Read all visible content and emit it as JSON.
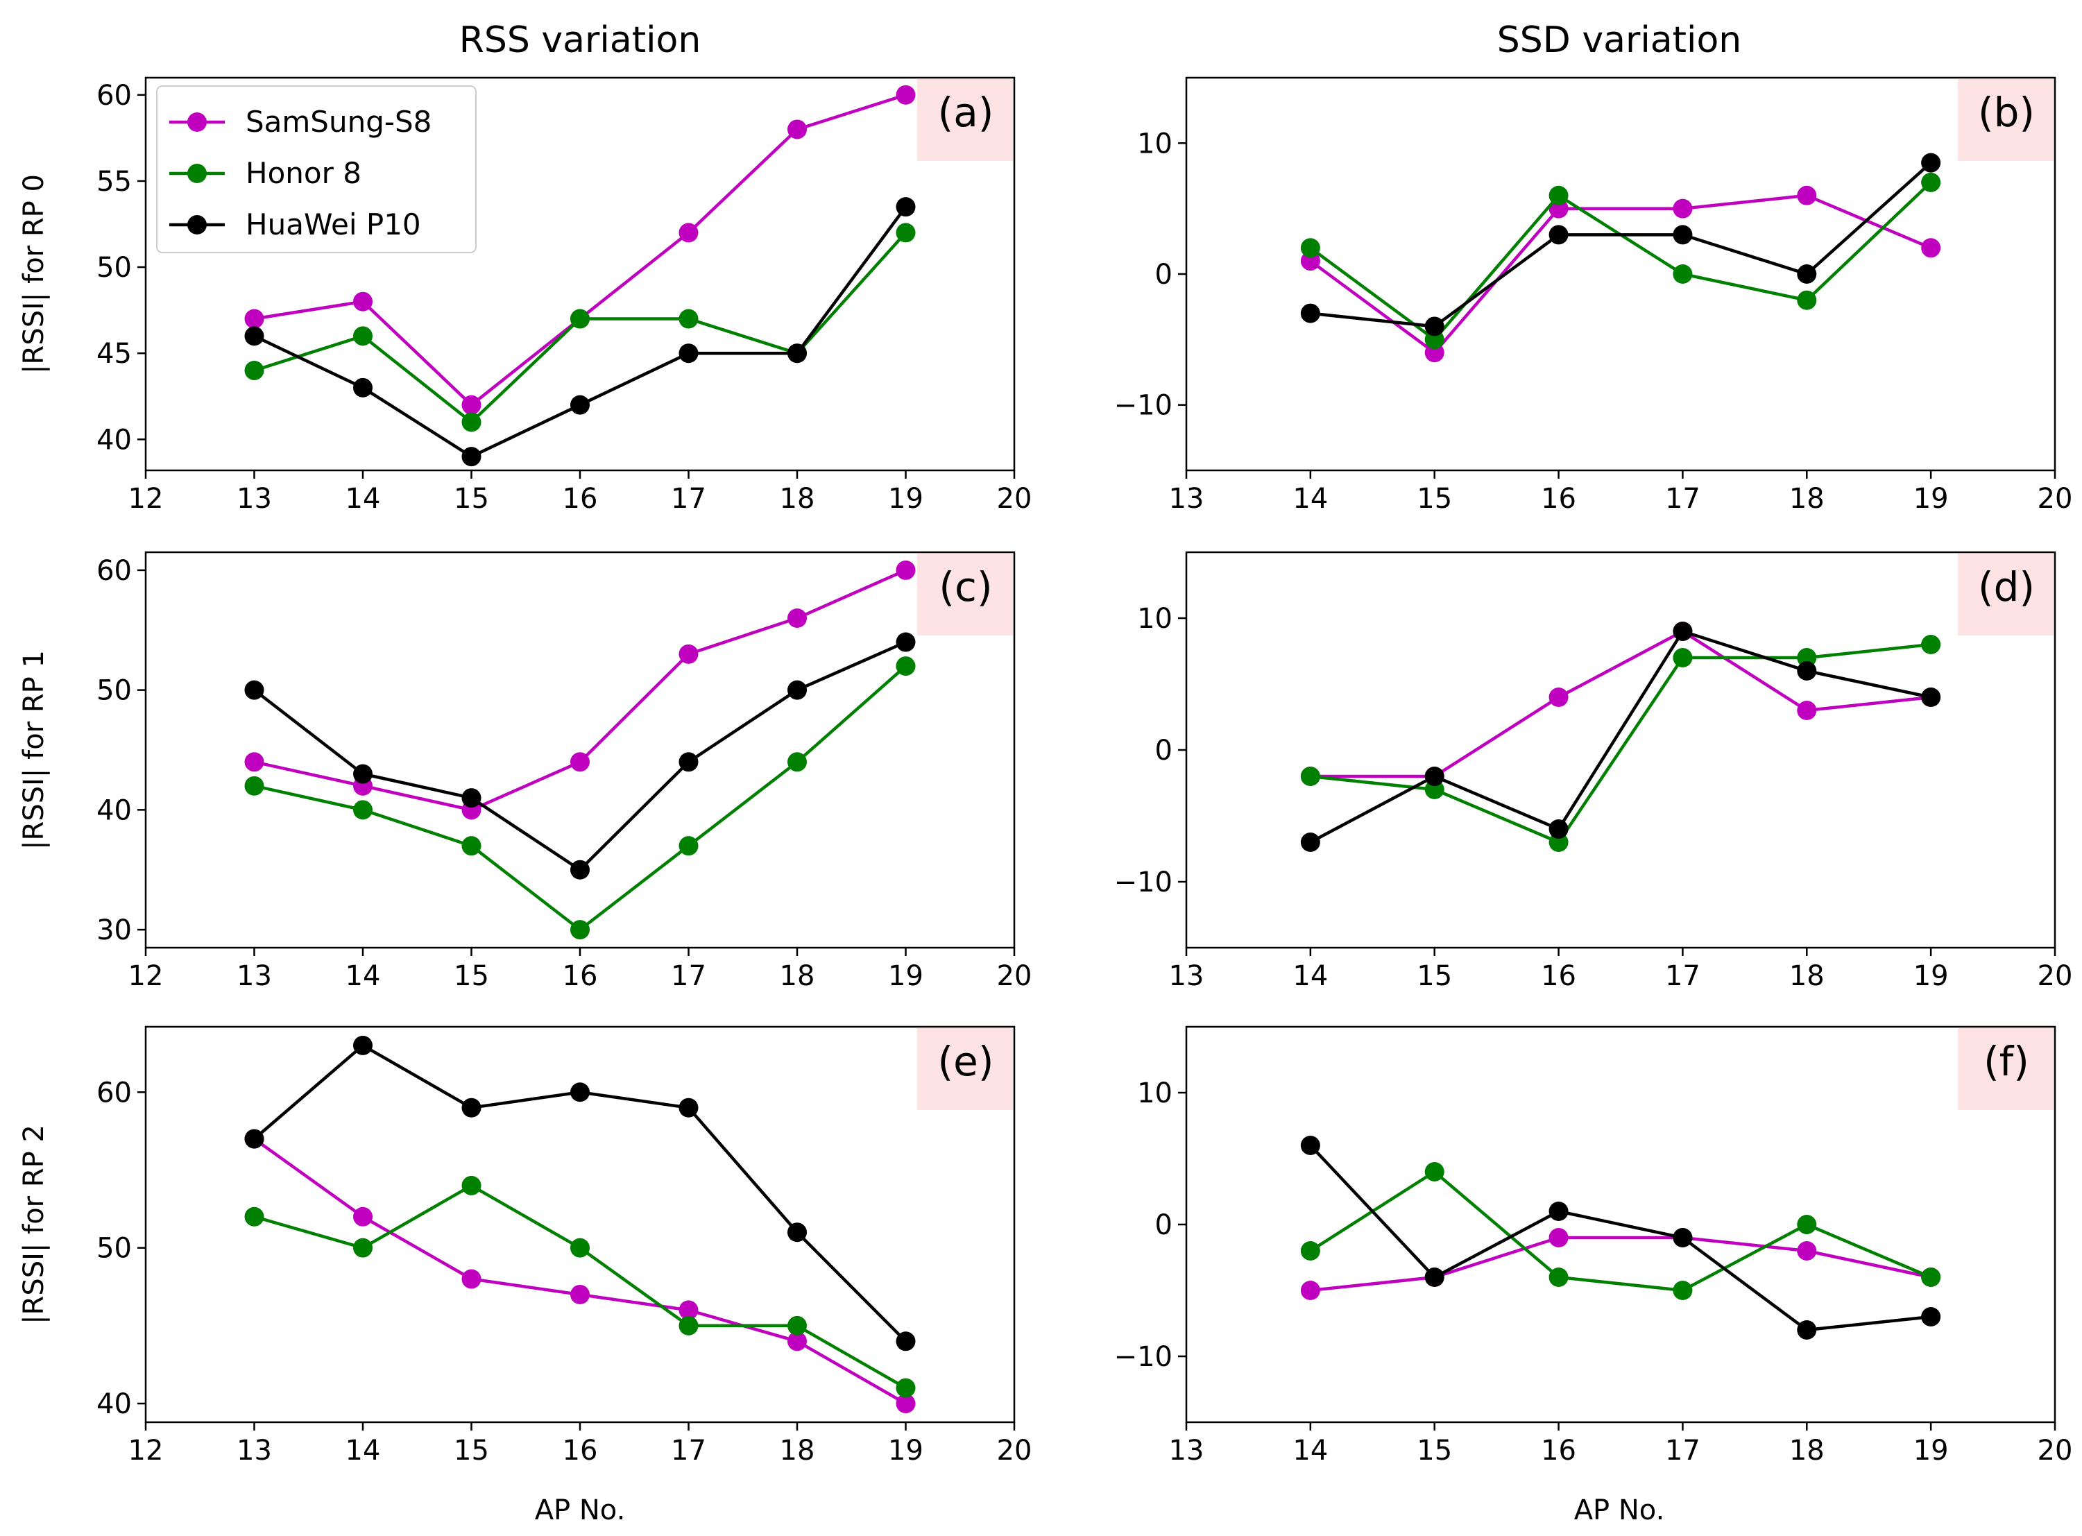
{
  "colors": {
    "SamSung-S8": "#bf00bf",
    "Honor 8": "#008000",
    "HuaWei P10": "#000000",
    "tag_bg": "#fde3e3"
  },
  "column_titles": [
    "RSS variation",
    "SSD variation"
  ],
  "xlabel": "AP No.",
  "legend": [
    "SamSung-S8",
    "Honor 8",
    "HuaWei P10"
  ],
  "chart_data": [
    {
      "panel": "(a)",
      "type": "line",
      "ylabel": "|RSSI| for RP 0",
      "x": [
        13,
        14,
        15,
        16,
        17,
        18,
        19
      ],
      "xlim": [
        12,
        20
      ],
      "ylim": [
        38.2,
        61
      ],
      "xticks": [
        12,
        13,
        14,
        15,
        16,
        17,
        18,
        19,
        20
      ],
      "yticks": [
        40,
        45,
        50,
        55,
        60
      ],
      "series": [
        {
          "name": "SamSung-S8",
          "values": [
            47,
            48,
            42,
            47,
            52,
            58,
            60
          ]
        },
        {
          "name": "Honor 8",
          "values": [
            44,
            46,
            41,
            47,
            47,
            45,
            52
          ]
        },
        {
          "name": "HuaWei P10",
          "values": [
            46,
            43,
            39,
            42,
            45,
            45,
            53.5
          ]
        }
      ]
    },
    {
      "panel": "(b)",
      "type": "line",
      "ylabel": "",
      "x": [
        14,
        15,
        16,
        17,
        18,
        19
      ],
      "xlim": [
        13,
        20
      ],
      "ylim": [
        -15,
        15
      ],
      "xticks": [
        13,
        14,
        15,
        16,
        17,
        18,
        19,
        20
      ],
      "yticks": [
        -10,
        0,
        10
      ],
      "series": [
        {
          "name": "SamSung-S8",
          "values": [
            1,
            -6,
            5,
            5,
            6,
            2
          ]
        },
        {
          "name": "Honor 8",
          "values": [
            2,
            -5,
            6,
            0,
            -2,
            7
          ]
        },
        {
          "name": "HuaWei P10",
          "values": [
            -3,
            -4,
            3,
            3,
            0,
            8.5
          ]
        }
      ]
    },
    {
      "panel": "(c)",
      "type": "line",
      "ylabel": "|RSSI| for RP 1",
      "x": [
        13,
        14,
        15,
        16,
        17,
        18,
        19
      ],
      "xlim": [
        12,
        20
      ],
      "ylim": [
        28.5,
        61.5
      ],
      "xticks": [
        12,
        13,
        14,
        15,
        16,
        17,
        18,
        19,
        20
      ],
      "yticks": [
        30,
        40,
        50,
        60
      ],
      "series": [
        {
          "name": "SamSung-S8",
          "values": [
            44,
            42,
            40,
            44,
            53,
            56,
            60
          ]
        },
        {
          "name": "Honor 8",
          "values": [
            42,
            40,
            37,
            30,
            37,
            44,
            52
          ]
        },
        {
          "name": "HuaWei P10",
          "values": [
            50,
            43,
            41,
            35,
            44,
            50,
            54
          ]
        }
      ]
    },
    {
      "panel": "(d)",
      "type": "line",
      "ylabel": "",
      "x": [
        14,
        15,
        16,
        17,
        18,
        19
      ],
      "xlim": [
        13,
        20
      ],
      "ylim": [
        -15,
        15
      ],
      "xticks": [
        13,
        14,
        15,
        16,
        17,
        18,
        19,
        20
      ],
      "yticks": [
        -10,
        0,
        10
      ],
      "series": [
        {
          "name": "SamSung-S8",
          "values": [
            -2,
            -2,
            4,
            9,
            3,
            4
          ]
        },
        {
          "name": "Honor 8",
          "values": [
            -2,
            -3,
            -7,
            7,
            7,
            8
          ]
        },
        {
          "name": "HuaWei P10",
          "values": [
            -7,
            -2,
            -6,
            9,
            6,
            4
          ]
        }
      ]
    },
    {
      "panel": "(e)",
      "type": "line",
      "ylabel": "|RSSI| for RP 2",
      "x": [
        13,
        14,
        15,
        16,
        17,
        18,
        19
      ],
      "xlim": [
        12,
        20
      ],
      "ylim": [
        38.8,
        64.2
      ],
      "xticks": [
        12,
        13,
        14,
        15,
        16,
        17,
        18,
        19,
        20
      ],
      "yticks": [
        40,
        50,
        60
      ],
      "series": [
        {
          "name": "SamSung-S8",
          "values": [
            57,
            52,
            48,
            47,
            46,
            44,
            40
          ]
        },
        {
          "name": "Honor 8",
          "values": [
            52,
            50,
            54,
            50,
            45,
            45,
            41
          ]
        },
        {
          "name": "HuaWei P10",
          "values": [
            57,
            63,
            59,
            60,
            59,
            51,
            44
          ]
        }
      ]
    },
    {
      "panel": "(f)",
      "type": "line",
      "ylabel": "",
      "x": [
        14,
        15,
        16,
        17,
        18,
        19
      ],
      "xlim": [
        13,
        20
      ],
      "ylim": [
        -15,
        15
      ],
      "xticks": [
        13,
        14,
        15,
        16,
        17,
        18,
        19,
        20
      ],
      "yticks": [
        -10,
        0,
        10
      ],
      "series": [
        {
          "name": "SamSung-S8",
          "values": [
            -5,
            -4,
            -1,
            -1,
            -2,
            -4
          ]
        },
        {
          "name": "Honor 8",
          "values": [
            -2,
            4,
            -4,
            -5,
            0,
            -4
          ]
        },
        {
          "name": "HuaWei P10",
          "values": [
            6,
            -4,
            1,
            -1,
            -8,
            -7
          ]
        }
      ]
    }
  ]
}
